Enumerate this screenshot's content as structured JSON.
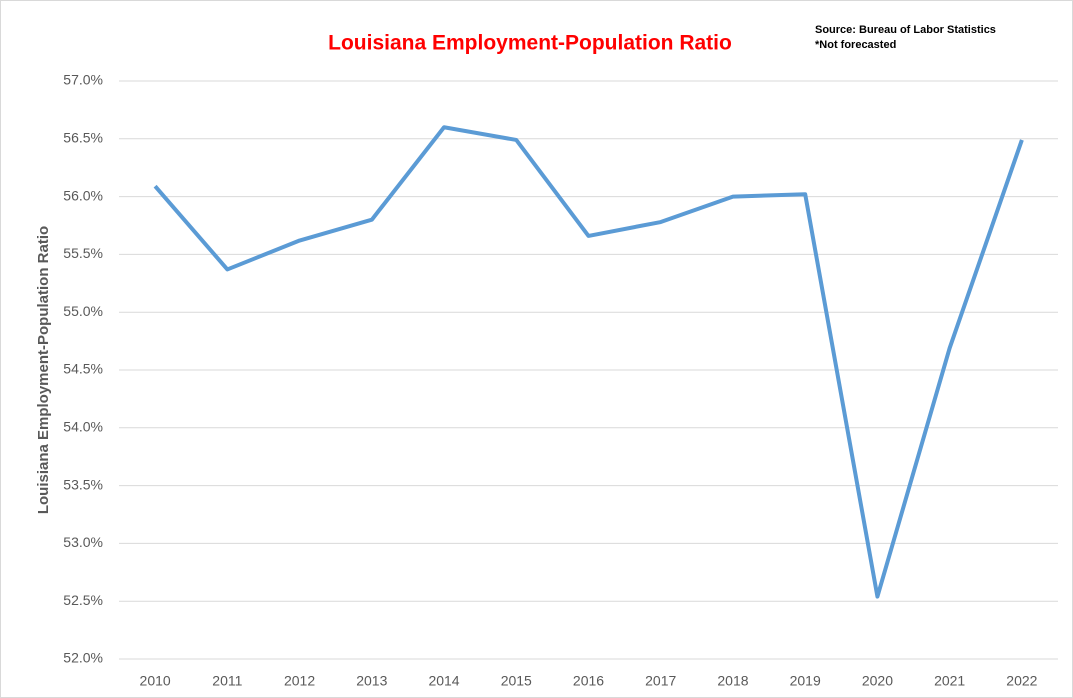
{
  "chart_data": {
    "type": "line",
    "title": "Louisiana Employment-Population Ratio",
    "annotations": [
      "Source: Bureau of Labor Statistics",
      "*Not forecasted"
    ],
    "y_label": "Louisiana Employment-Population Ratio",
    "categories": [
      "2010",
      "2011",
      "2012",
      "2013",
      "2014",
      "2015",
      "2016",
      "2017",
      "2018",
      "2019",
      "2020",
      "2021",
      "2022"
    ],
    "series": [
      {
        "name": "Louisiana Employment-Population Ratio",
        "color": "#5b9bd5",
        "values": [
          56.09,
          55.37,
          55.62,
          55.8,
          56.6,
          56.49,
          55.66,
          55.78,
          56.0,
          56.02,
          52.54,
          54.69,
          56.49
        ]
      }
    ],
    "ylim": [
      52,
      57
    ],
    "yticks": [
      {
        "value": 52,
        "label": "52.0%"
      },
      {
        "value": 52.5,
        "label": "52.5%"
      },
      {
        "value": 53,
        "label": "53.0%"
      },
      {
        "value": 53.5,
        "label": "53.5%"
      },
      {
        "value": 54,
        "label": "54.0%"
      },
      {
        "value": 54.5,
        "label": "54.5%"
      },
      {
        "value": 55,
        "label": "55.0%"
      },
      {
        "value": 55.5,
        "label": "55.5%"
      },
      {
        "value": 56,
        "label": "56.0%"
      },
      {
        "value": 56.5,
        "label": "56.5%"
      },
      {
        "value": 57,
        "label": "57.0%"
      }
    ],
    "grid": true
  }
}
